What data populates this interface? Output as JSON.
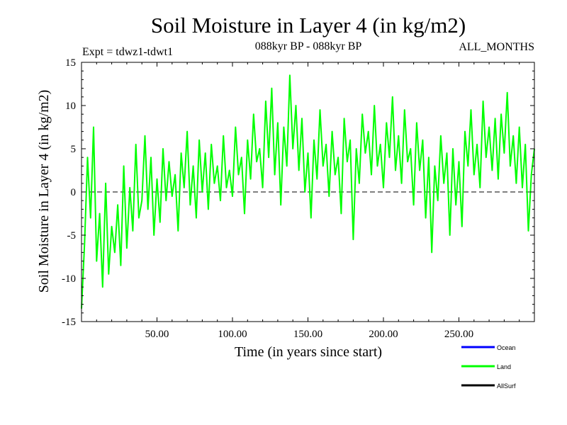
{
  "chart_data": {
    "type": "line",
    "title": "Soil Moisture in Layer 4 (in kg/m2)",
    "subtitle_left": "Expt = tdwz1-tdwt1",
    "subtitle_center": "088kyr BP - 088kyr BP",
    "subtitle_right": "ALL_MONTHS",
    "xlabel": "Time (in years since start)",
    "ylabel": "Soil Moisture in Layer 4 (in kg/m2)",
    "xlim": [
      0,
      300
    ],
    "ylim": [
      -15,
      15
    ],
    "x_ticks": [
      50,
      100,
      150,
      200,
      250
    ],
    "x_tick_labels": [
      "50.00",
      "100.00",
      "150.00",
      "200.00",
      "250.00"
    ],
    "y_ticks": [
      -15,
      -10,
      -5,
      0,
      5,
      10,
      15
    ],
    "y_tick_labels": [
      "-15",
      "-10",
      "-5",
      "0",
      "5",
      "10",
      "15"
    ],
    "zero_line": "dashed",
    "grid": false,
    "legend_position": "bottom-right, below plot",
    "series": [
      {
        "name": "Ocean",
        "color": "#0000ff",
        "x": [],
        "y": []
      },
      {
        "name": "Land",
        "color": "#00ff00",
        "x": [
          0,
          2,
          4,
          6,
          8,
          10,
          12,
          14,
          16,
          18,
          20,
          22,
          24,
          26,
          28,
          30,
          32,
          34,
          36,
          38,
          40,
          42,
          44,
          46,
          48,
          50,
          52,
          54,
          56,
          58,
          60,
          62,
          64,
          66,
          68,
          70,
          72,
          74,
          76,
          78,
          80,
          82,
          84,
          86,
          88,
          90,
          92,
          94,
          96,
          98,
          100,
          102,
          104,
          106,
          108,
          110,
          112,
          114,
          116,
          118,
          120,
          122,
          124,
          126,
          128,
          130,
          132,
          134,
          136,
          138,
          140,
          142,
          144,
          146,
          148,
          150,
          152,
          154,
          156,
          158,
          160,
          162,
          164,
          166,
          168,
          170,
          172,
          174,
          176,
          178,
          180,
          182,
          184,
          186,
          188,
          190,
          192,
          194,
          196,
          198,
          200,
          202,
          204,
          206,
          208,
          210,
          212,
          214,
          216,
          218,
          220,
          222,
          224,
          226,
          228,
          230,
          232,
          234,
          236,
          238,
          240,
          242,
          244,
          246,
          248,
          250,
          252,
          254,
          256,
          258,
          260,
          262,
          264,
          266,
          268,
          270,
          272,
          274,
          276,
          278,
          280,
          282,
          284,
          286,
          288,
          290,
          292,
          294,
          296,
          298,
          300
        ],
        "y": [
          -13.5,
          -6.0,
          4.0,
          -3.0,
          7.5,
          -8.0,
          -2.5,
          -11.0,
          1.0,
          -9.5,
          -4.0,
          -7.0,
          -1.5,
          -8.5,
          3.0,
          -6.5,
          0.5,
          -4.5,
          5.5,
          -3.0,
          -1.0,
          6.5,
          -2.0,
          4.0,
          -5.0,
          1.5,
          -3.5,
          5.0,
          -1.0,
          3.5,
          -0.5,
          2.0,
          -4.5,
          4.5,
          0.5,
          7.0,
          -1.5,
          3.0,
          -3.0,
          6.0,
          0.0,
          4.5,
          -2.0,
          5.5,
          1.0,
          3.0,
          -1.0,
          6.5,
          0.5,
          2.5,
          -0.5,
          7.5,
          2.0,
          4.0,
          -2.5,
          6.0,
          1.5,
          9.0,
          3.5,
          5.0,
          0.5,
          10.5,
          4.0,
          12.0,
          2.0,
          8.0,
          -1.5,
          7.5,
          3.0,
          13.5,
          5.0,
          10.0,
          2.5,
          8.5,
          0.0,
          4.5,
          -3.0,
          6.0,
          1.5,
          9.5,
          3.0,
          5.5,
          -0.5,
          7.0,
          2.0,
          4.0,
          -2.5,
          8.5,
          3.5,
          6.0,
          -5.5,
          5.0,
          1.0,
          9.0,
          4.5,
          7.0,
          2.0,
          10.0,
          3.0,
          5.5,
          0.5,
          8.0,
          4.0,
          11.0,
          2.5,
          6.5,
          1.0,
          9.5,
          3.5,
          5.0,
          -1.5,
          8.0,
          2.5,
          6.0,
          -3.0,
          4.0,
          -7.0,
          3.0,
          -1.0,
          6.5,
          1.0,
          4.5,
          -5.0,
          5.0,
          -1.5,
          3.5,
          -4.0,
          7.0,
          3.0,
          9.5,
          2.0,
          5.5,
          0.5,
          10.5,
          4.0,
          7.5,
          2.5,
          8.5,
          1.5,
          9.0,
          4.5,
          11.5,
          3.0,
          6.5,
          1.0,
          7.5,
          0.5,
          5.5,
          -4.5,
          2.0,
          5.0
        ]
      },
      {
        "name": "AllSurf",
        "color": "#000000",
        "x": [],
        "y": []
      }
    ]
  }
}
